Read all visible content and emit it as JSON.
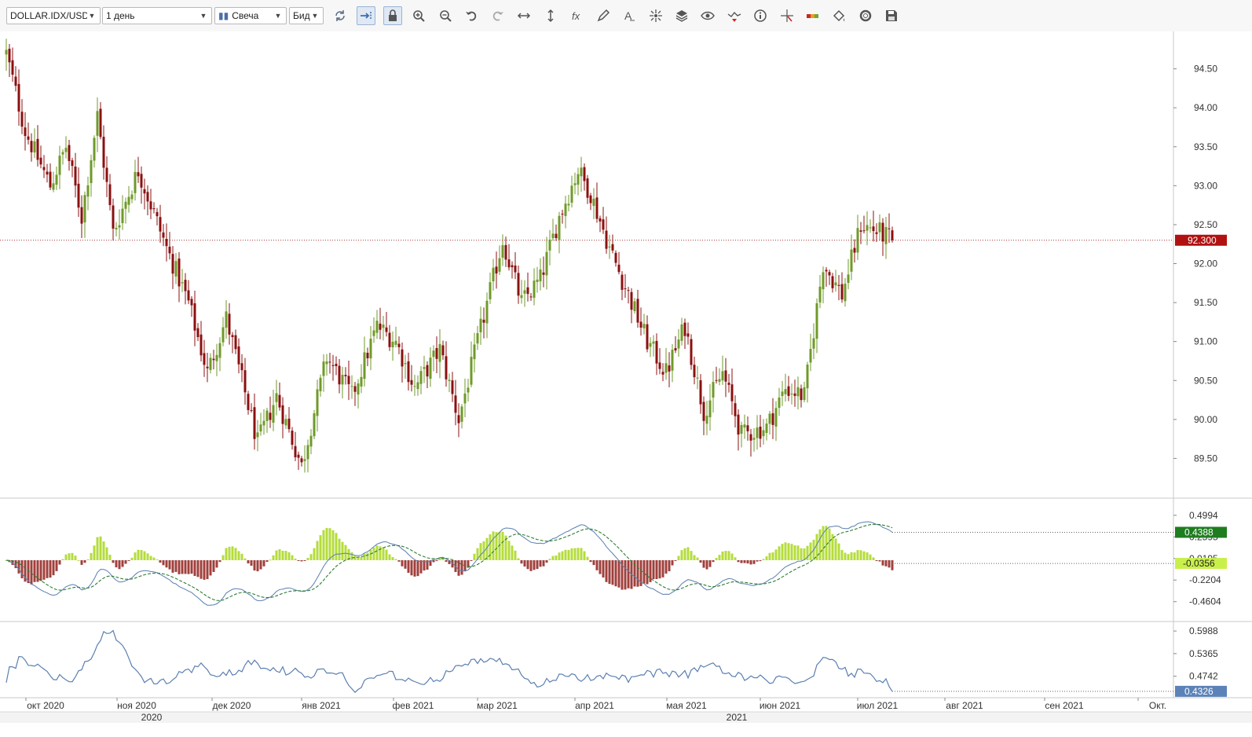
{
  "toolbar": {
    "symbol": "DOLLAR.IDX/USD",
    "timeframe": "1 день",
    "chart_style": "Свеча",
    "price_side": "Бид",
    "icons": [
      "refresh-icon",
      "autoscroll-icon",
      "lock-icon",
      "zoom-in-icon",
      "zoom-out-icon",
      "undo-icon",
      "redo-icon",
      "horizontal-scale-icon",
      "vertical-scale-icon",
      "function-icon",
      "draw-icon",
      "text-icon",
      "crosshair-icon",
      "layers-icon",
      "eye-icon",
      "indicator-icon",
      "info-icon",
      "cursor-icon",
      "color-icon",
      "fill-icon",
      "settings-icon",
      "save-icon"
    ]
  },
  "colors": {
    "bull": "#6f9a2a",
    "bear": "#8b1010",
    "hist_pos": "#b5dc3c",
    "hist_neg": "#a0403c",
    "line": "#5a7fb0",
    "signal": "#2e7d32",
    "price_badge": "#b11111",
    "macd_badge": "#1e7d1e",
    "hist_badge": "#c9f04a",
    "osc_badge": "#5b83b8"
  },
  "chart_data": [
    {
      "type": "candlestick",
      "yticks": [
        "94.50",
        "94.00",
        "93.50",
        "93.00",
        "92.50",
        "92.00",
        "91.50",
        "91.00",
        "90.50",
        "90.00",
        "89.50"
      ],
      "ylim": [
        89.0,
        94.98
      ],
      "last_price": 92.3,
      "last_price_label": "92.300",
      "anchors": [
        [
          0,
          94.7
        ],
        [
          6,
          93.7
        ],
        [
          14,
          93.0
        ],
        [
          19,
          93.5
        ],
        [
          24,
          92.6
        ],
        [
          29,
          93.9
        ],
        [
          34,
          92.4
        ],
        [
          42,
          93.2
        ],
        [
          51,
          92.2
        ],
        [
          58,
          91.5
        ],
        [
          64,
          90.6
        ],
        [
          70,
          91.3
        ],
        [
          80,
          89.7
        ],
        [
          86,
          90.3
        ],
        [
          94,
          89.4
        ],
        [
          102,
          90.8
        ],
        [
          110,
          90.3
        ],
        [
          118,
          91.2
        ],
        [
          124,
          91.0
        ],
        [
          130,
          90.4
        ],
        [
          138,
          90.9
        ],
        [
          144,
          90.0
        ],
        [
          150,
          91.0
        ],
        [
          158,
          92.3
        ],
        [
          164,
          91.5
        ],
        [
          170,
          91.8
        ],
        [
          176,
          92.6
        ],
        [
          182,
          93.2
        ],
        [
          186,
          92.9
        ],
        [
          192,
          92.2
        ],
        [
          198,
          91.6
        ],
        [
          204,
          91.0
        ],
        [
          210,
          90.6
        ],
        [
          216,
          91.2
        ],
        [
          222,
          90.1
        ],
        [
          228,
          90.6
        ],
        [
          234,
          89.8
        ],
        [
          242,
          89.9
        ],
        [
          248,
          90.4
        ],
        [
          254,
          90.3
        ],
        [
          260,
          92.0
        ],
        [
          266,
          91.6
        ],
        [
          272,
          92.5
        ],
        [
          278,
          92.4
        ],
        [
          282,
          92.3
        ]
      ]
    },
    {
      "type": "macd",
      "yticks": [
        "0.4994",
        "0.2595",
        "0.0195",
        "-0.2204",
        "-0.4604"
      ],
      "macd_label": "0.4388",
      "hist_label": "-0.0356"
    },
    {
      "type": "line",
      "yticks": [
        "0.5988",
        "0.5365",
        "0.4742"
      ],
      "last_label": "0.4326"
    }
  ],
  "xaxis": {
    "months": [
      "окт 2020",
      "ноя 2020",
      "дек 2020",
      "янв 2021",
      "фев 2021",
      "мар 2021",
      "апр 2021",
      "мая 2021",
      "июн 2021",
      "июл 2021",
      "авг 2021",
      "сен 2021",
      "Окт."
    ],
    "years": [
      "2020",
      "2021"
    ]
  }
}
